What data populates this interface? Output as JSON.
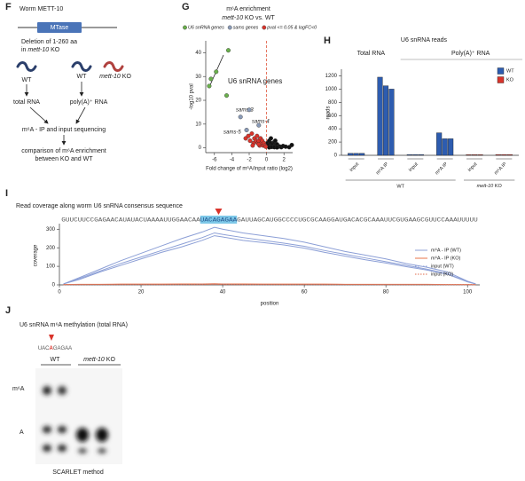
{
  "panel_labels": [
    "F",
    "G",
    "H",
    "I",
    "J"
  ],
  "diagram_f": {
    "title": "Worm METT-10",
    "domain": "MTase",
    "deletion": "Deletion of 1-260 aa",
    "deletion_pre": "in ",
    "deletion_gene": "mett-10",
    "deletion_post": " KO",
    "strains": [
      "WT",
      "WT"
    ],
    "ko_gene": "mett-10",
    "ko_suffix": " KO",
    "total_rna": "total RNA",
    "polya_rna": "poly(A)⁺ RNA",
    "sequencing": "m⁶A - IP and input sequencing",
    "comparison_line1": "comparison of m⁶A enrichment",
    "comparison_line2": "between KO and WT"
  },
  "chart_data": [
    {
      "type": "scatter",
      "title": "m⁶A enrichment",
      "subtitle_gene": "mett-10",
      "subtitle_rest": " KO vs. WT",
      "xlabel": "Fold change of m⁶A/input ratio (log2)",
      "ylabel": "-log10 pval",
      "xlim": [
        -7,
        3
      ],
      "ylim": [
        -2,
        45
      ],
      "xticks": [
        -6,
        -4,
        -2,
        0,
        2
      ],
      "yticks": [
        0,
        10,
        20,
        30,
        40
      ],
      "vline": 0,
      "vline_color": "#e0553a",
      "annotations": [
        "U6 snRNA genes",
        "sams-3",
        "sams-4",
        "sams-5"
      ],
      "series": [
        {
          "name": "U6 snRNA genes",
          "color": "#6ab04c",
          "x": [
            -4.4,
            -5.8,
            -6.4,
            -6.6,
            -4.6
          ],
          "y": [
            41,
            32,
            29,
            26,
            22
          ]
        },
        {
          "name": "sams genes",
          "color": "#8a9bb8",
          "x": [
            -2.0,
            -3.0,
            -0.9,
            -2.3
          ],
          "y": [
            16,
            13,
            9.5,
            7.5
          ]
        },
        {
          "name": "pval <= 0.05 & logFC<0",
          "color": "#d9342b",
          "x": [
            -2.4,
            -2.1,
            -1.9,
            -1.7,
            -1.5,
            -1.4,
            -1.2,
            -1.1,
            -1.0,
            -0.9,
            -0.8,
            -0.7,
            -0.6,
            -0.5,
            -0.4,
            -0.3,
            -0.2,
            -0.1,
            -1.6,
            -0.9
          ],
          "y": [
            4,
            5,
            3,
            6,
            2,
            4,
            3,
            5,
            2,
            3,
            1,
            4,
            2,
            3,
            1,
            2,
            1,
            0.5,
            1,
            1.5
          ]
        },
        {
          "color": "#111111",
          "x": [
            0.1,
            0.2,
            0.3,
            0.4,
            0.5,
            0.6,
            0.7,
            0.8,
            0.9,
            1.0,
            1.1,
            1.2,
            1.3,
            1.5,
            1.7,
            1.9,
            2.2,
            2.6,
            0.3,
            0.6,
            0.9,
            1.2,
            0.5,
            1.0,
            2.9
          ],
          "y": [
            2,
            1,
            3,
            0.5,
            2,
            1,
            1.5,
            0.5,
            2.5,
            1,
            0.8,
            1.5,
            0.4,
            0.6,
            0.3,
            0.8,
            0.5,
            0.3,
            0.2,
            0.4,
            0.3,
            0.2,
            4,
            3,
            1.2
          ]
        }
      ]
    },
    {
      "type": "bar",
      "title": "U6 snRNA reads",
      "group_headers": [
        "Total RNA",
        "Poly(A)⁺ RNA"
      ],
      "condition_wt": "WT",
      "ko_gene": "mett-10",
      "ko_suffix": " KO",
      "ylabel": "reads",
      "ylim": [
        0,
        1300
      ],
      "yticks": [
        0,
        200,
        400,
        600,
        800,
        1000,
        1200
      ],
      "legend": "top-right",
      "categories": [
        "input",
        "m⁶A IP",
        "input",
        "m⁶A IP",
        "input",
        "m⁶A IP"
      ],
      "series": [
        {
          "name": "WT",
          "color": "#2d5cb0",
          "values": [
            [
              30,
              30,
              30
            ],
            [
              1180,
              1050,
              1000
            ],
            [
              12,
              12,
              12
            ],
            [
              340,
              250,
              250
            ],
            null,
            null
          ]
        },
        {
          "name": "KO",
          "color": "#d9342b",
          "values": [
            null,
            null,
            null,
            null,
            [
              10,
              10,
              10
            ],
            [
              12,
              12,
              12
            ]
          ]
        }
      ]
    },
    {
      "type": "line",
      "title": "Read coverage along worm U6 snRNA consensus sequence",
      "sequence_pre": "GUUCUUCCGAGAACAUAUACUAAAAUUGGAACAA",
      "sequence_mark": "UACAGAGAA",
      "sequence_post": "GAUUAGCAUGGCCCCUGCGCAAGGAUGACACGCAAAUUCGUGAAGCGUUCCAAAUUUUU",
      "xlabel": "position",
      "ylabel": "coverage",
      "xlim": [
        0,
        103
      ],
      "xticks": [
        0,
        20,
        40,
        60,
        80,
        100
      ],
      "ylim": [
        0,
        330
      ],
      "yticks": [
        0,
        100,
        200,
        300
      ],
      "x": [
        1,
        5,
        10,
        15,
        20,
        25,
        30,
        35,
        38,
        40,
        45,
        50,
        55,
        60,
        65,
        70,
        75,
        80,
        85,
        90,
        95,
        100,
        102
      ],
      "series": [
        {
          "name": "m⁶A - IP (WT)",
          "color": "#8c9fd6",
          "style": "solid",
          "replicates": [
            [
              5,
              40,
              85,
              130,
              170,
              210,
              250,
              285,
              310,
              300,
              280,
              265,
              250,
              230,
              205,
              180,
              160,
              140,
              115,
              95,
              70,
              20,
              5
            ],
            [
              5,
              35,
              75,
              115,
              150,
              185,
              220,
              255,
              280,
              272,
              255,
              240,
              225,
              208,
              185,
              165,
              145,
              125,
              105,
              85,
              60,
              18,
              5
            ],
            [
              5,
              30,
              70,
              105,
              140,
              175,
              205,
              240,
              265,
              258,
              240,
              228,
              215,
              198,
              175,
              155,
              135,
              118,
              98,
              80,
              58,
              16,
              5
            ]
          ]
        },
        {
          "name": "m⁶A - IP (KO)",
          "color": "#e8744a",
          "style": "solid",
          "replicates": [
            [
              2,
              3,
              3,
              4,
              4,
              4,
              5,
              5,
              6,
              5,
              5,
              4,
              4,
              4,
              4,
              3,
              3,
              3,
              3,
              3,
              2,
              2,
              1
            ]
          ]
        },
        {
          "name": "input (WT)",
          "color": "#8c9fd6",
          "style": "dotted",
          "replicates": [
            [
              1,
              2,
              2,
              2,
              2,
              2,
              2,
              3,
              3,
              3,
              2,
              2,
              2,
              2,
              2,
              2,
              2,
              2,
              2,
              2,
              1,
              1,
              1
            ]
          ]
        },
        {
          "name": "input (KO)",
          "color": "#e06a4a",
          "style": "dotted",
          "replicates": [
            [
              1,
              1,
              2,
              2,
              2,
              2,
              2,
              2,
              3,
              2,
              2,
              2,
              2,
              2,
              2,
              2,
              2,
              1,
              1,
              1,
              1,
              1,
              1
            ]
          ]
        }
      ]
    }
  ],
  "figure_j": {
    "title": "U6 snRNA m⁶A methylation (total RNA)",
    "sequence_pre": "UAC",
    "sequence_mark": "A",
    "sequence_post": "GAGAA",
    "wt": "WT",
    "ko_gene": "mett-10",
    "ko_suffix": " KO",
    "band_labels": [
      "m⁶A",
      "A"
    ],
    "method": "SCARLET method"
  }
}
